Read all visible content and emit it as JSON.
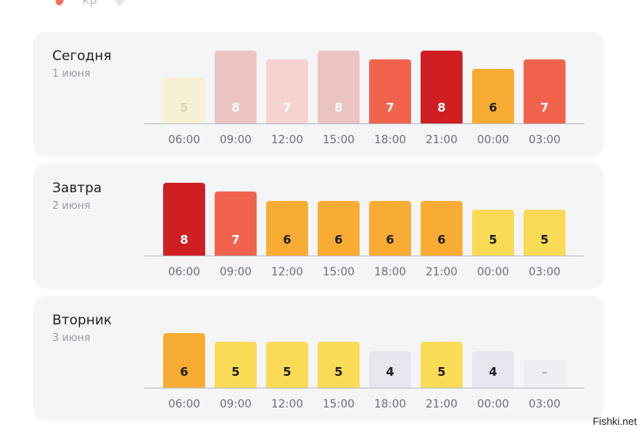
{
  "header_partial": {
    "label": "кр"
  },
  "days": [
    {
      "name": "Сегодня",
      "date": "1 июня",
      "slots": [
        {
          "time": "06:00",
          "value": "5",
          "level": 0.5,
          "color": "#f8f0d4",
          "text_color": "#d9d2b8"
        },
        {
          "time": "09:00",
          "value": "8",
          "level": 0.8,
          "color": "#ecc3c3",
          "text_color": "#ffffff"
        },
        {
          "time": "12:00",
          "value": "7",
          "level": 0.7,
          "color": "#f6d2d0",
          "text_color": "#ffffff"
        },
        {
          "time": "15:00",
          "value": "8",
          "level": 0.8,
          "color": "#ecc3c3",
          "text_color": "#ffffff"
        },
        {
          "time": "18:00",
          "value": "7",
          "level": 0.7,
          "color": "#f2634e",
          "text_color": "#ffffff"
        },
        {
          "time": "21:00",
          "value": "8",
          "level": 0.8,
          "color": "#cf1f22",
          "text_color": "#ffffff"
        },
        {
          "time": "00:00",
          "value": "6",
          "level": 0.6,
          "color": "#f9ac33",
          "text_color": "#1e1e1e"
        },
        {
          "time": "03:00",
          "value": "7",
          "level": 0.7,
          "color": "#f2634e",
          "text_color": "#ffffff"
        }
      ]
    },
    {
      "name": "Завтра",
      "date": "2 июня",
      "slots": [
        {
          "time": "06:00",
          "value": "8",
          "level": 0.8,
          "color": "#cf1f22",
          "text_color": "#ffffff"
        },
        {
          "time": "09:00",
          "value": "7",
          "level": 0.7,
          "color": "#f2634e",
          "text_color": "#ffffff"
        },
        {
          "time": "12:00",
          "value": "6",
          "level": 0.6,
          "color": "#f9ac33",
          "text_color": "#1e1e1e"
        },
        {
          "time": "15:00",
          "value": "6",
          "level": 0.6,
          "color": "#f9ac33",
          "text_color": "#1e1e1e"
        },
        {
          "time": "18:00",
          "value": "6",
          "level": 0.6,
          "color": "#f9ac33",
          "text_color": "#1e1e1e"
        },
        {
          "time": "21:00",
          "value": "6",
          "level": 0.6,
          "color": "#f9ac33",
          "text_color": "#1e1e1e"
        },
        {
          "time": "00:00",
          "value": "5",
          "level": 0.5,
          "color": "#fadb55",
          "text_color": "#1e1e1e"
        },
        {
          "time": "03:00",
          "value": "5",
          "level": 0.5,
          "color": "#fadb55",
          "text_color": "#1e1e1e"
        }
      ]
    },
    {
      "name": "Вторник",
      "date": "3 июня",
      "slots": [
        {
          "time": "06:00",
          "value": "6",
          "level": 0.6,
          "color": "#f9ac33",
          "text_color": "#1e1e1e"
        },
        {
          "time": "09:00",
          "value": "5",
          "level": 0.5,
          "color": "#fadb55",
          "text_color": "#1e1e1e"
        },
        {
          "time": "12:00",
          "value": "5",
          "level": 0.5,
          "color": "#fadb55",
          "text_color": "#1e1e1e"
        },
        {
          "time": "15:00",
          "value": "5",
          "level": 0.5,
          "color": "#fadb55",
          "text_color": "#1e1e1e"
        },
        {
          "time": "18:00",
          "value": "4",
          "level": 0.4,
          "color": "#e6e6ee",
          "text_color": "#1e1e1e"
        },
        {
          "time": "21:00",
          "value": "5",
          "level": 0.5,
          "color": "#fadb55",
          "text_color": "#1e1e1e"
        },
        {
          "time": "00:00",
          "value": "4",
          "level": 0.4,
          "color": "#e6e6ee",
          "text_color": "#1e1e1e"
        },
        {
          "time": "03:00",
          "value": "–",
          "level": 0.3,
          "color": "#eeeff3",
          "text_color": "#b3b5be"
        }
      ]
    }
  ],
  "watermark": "Fishki.net"
}
